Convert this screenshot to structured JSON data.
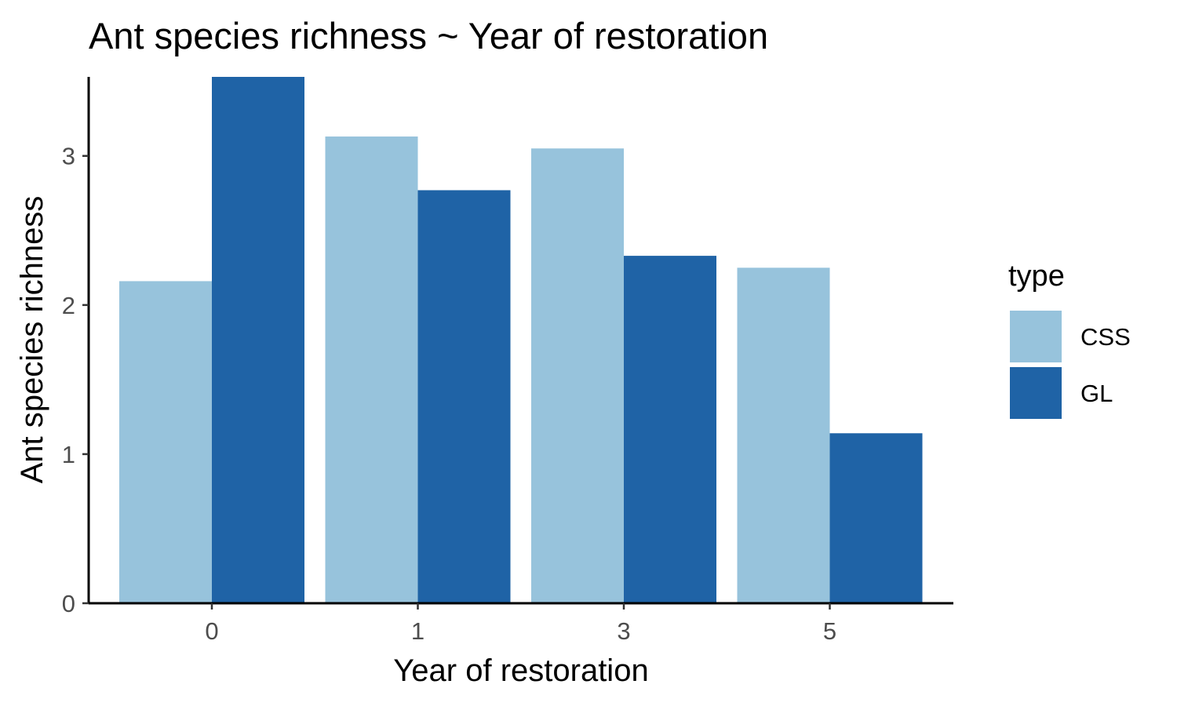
{
  "chart_data": {
    "type": "bar",
    "title": "Ant species richness ~ Year of restoration",
    "xlabel": "Year of restoration",
    "ylabel": "Ant species richness",
    "categories": [
      "0",
      "1",
      "3",
      "5"
    ],
    "series": [
      {
        "name": "CSS",
        "color": "#97c3dc",
        "values": [
          2.16,
          3.13,
          3.05,
          2.25
        ]
      },
      {
        "name": "GL",
        "color": "#1f63a6",
        "values": [
          3.53,
          2.77,
          2.33,
          1.14
        ]
      }
    ],
    "yticks": [
      0,
      1,
      2,
      3
    ],
    "ylim": [
      0,
      3.53
    ],
    "legend": {
      "title": "type",
      "position": "right"
    },
    "grid": false
  }
}
